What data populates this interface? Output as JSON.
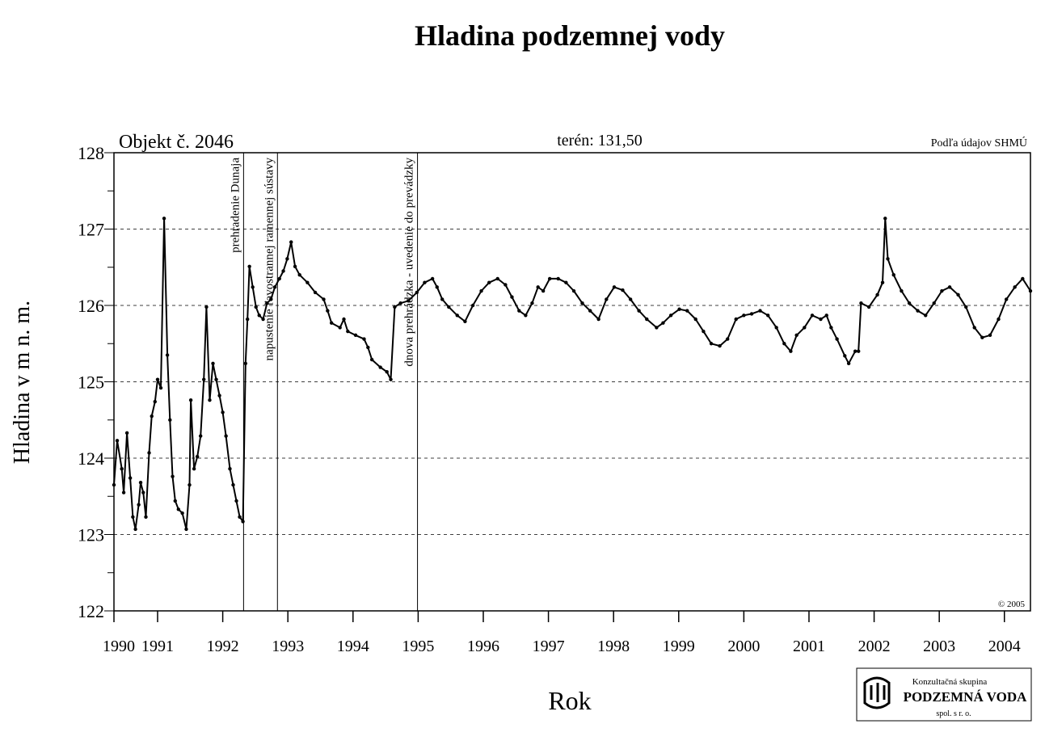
{
  "chart_data": {
    "type": "line",
    "title": "Hladina podzemnej vody",
    "object_label": "Objekt č. 2046",
    "terrain_label": "terén: 131,50",
    "source": "Podľa údajov SHMÚ",
    "copyright": "© 2005",
    "x_label": "Rok",
    "y_label": "Hladina v m n. m.",
    "logo": {
      "line1": "Konzultačná skupina",
      "line2": "PODZEMNÁ VODA",
      "line3": "spol. s r. o."
    },
    "xlim": [
      1990.33,
      2004.4
    ],
    "ylim": [
      122,
      128
    ],
    "xticks": [
      {
        "value": 1990.33,
        "label": "1990"
      },
      1991,
      1992,
      1993,
      1994,
      1995,
      1996,
      1997,
      1998,
      1999,
      2000,
      2001,
      2002,
      2003,
      2004
    ],
    "yticks": [
      122,
      123,
      124,
      125,
      126,
      127,
      128
    ],
    "yminor_ticks": [
      122.5,
      123.5,
      124.5,
      125.5,
      126.5,
      127.5
    ],
    "grid": true,
    "annotations": [
      {
        "x": 1992.32,
        "text": "prehradenie Dunaja"
      },
      {
        "x": 1992.84,
        "text": "napustenie ľavostrannej ramennej sústavy"
      },
      {
        "x": 1994.99,
        "text": "dnova prehrádzka - uvedenie do prevádzky"
      }
    ],
    "series": [
      {
        "name": "Objekt č. 2046",
        "color": "#000000",
        "x": [
          1990.33,
          1990.38,
          1990.45,
          1990.48,
          1990.53,
          1990.58,
          1990.62,
          1990.66,
          1990.71,
          1990.74,
          1990.78,
          1990.82,
          1990.87,
          1990.91,
          1990.96,
          1991.0,
          1991.05,
          1991.1,
          1991.15,
          1991.19,
          1991.23,
          1991.27,
          1991.32,
          1991.38,
          1991.44,
          1991.49,
          1991.51,
          1991.56,
          1991.61,
          1991.66,
          1991.71,
          1991.75,
          1991.8,
          1991.85,
          1991.9,
          1991.95,
          1992.0,
          1992.05,
          1992.11,
          1992.16,
          1992.21,
          1992.26,
          1992.31,
          1992.35,
          1992.38,
          1992.41,
          1992.46,
          1992.51,
          1992.56,
          1992.62,
          1992.68,
          1992.74,
          1992.8,
          1992.87,
          1992.93,
          1992.99,
          1993.05,
          1993.11,
          1993.18,
          1993.3,
          1993.42,
          1993.55,
          1993.61,
          1993.67,
          1993.8,
          1993.86,
          1993.92,
          1994.04,
          1994.17,
          1994.23,
          1994.29,
          1994.42,
          1994.52,
          1994.58,
          1994.64,
          1994.73,
          1994.85,
          1994.98,
          1995.1,
          1995.22,
          1995.29,
          1995.37,
          1995.47,
          1995.6,
          1995.72,
          1995.84,
          1995.97,
          1996.09,
          1996.22,
          1996.34,
          1996.44,
          1996.55,
          1996.65,
          1996.75,
          1996.84,
          1996.92,
          1997.02,
          1997.15,
          1997.27,
          1997.39,
          1997.52,
          1997.64,
          1997.77,
          1997.89,
          1998.01,
          1998.14,
          1998.26,
          1998.39,
          1998.51,
          1998.66,
          1998.76,
          1998.88,
          1999.01,
          1999.13,
          1999.26,
          1999.38,
          1999.5,
          1999.63,
          1999.75,
          1999.88,
          2000.0,
          2000.12,
          2000.25,
          2000.37,
          2000.5,
          2000.62,
          2000.72,
          2000.81,
          2000.93,
          2001.05,
          2001.18,
          2001.27,
          2001.34,
          2001.43,
          2001.55,
          2001.61,
          2001.71,
          2001.76,
          2001.8,
          2001.92,
          2002.05,
          2002.13,
          2002.17,
          2002.21,
          2002.3,
          2002.42,
          2002.54,
          2002.67,
          2002.79,
          2002.92,
          2003.04,
          2003.16,
          2003.29,
          2003.41,
          2003.54,
          2003.66,
          2003.78,
          2003.91,
          2004.03,
          2004.16,
          2004.28,
          2004.4
        ],
        "values": [
          123.65,
          124.23,
          123.86,
          123.55,
          124.33,
          123.74,
          123.23,
          123.07,
          123.39,
          123.68,
          123.55,
          123.23,
          124.07,
          124.55,
          124.74,
          125.03,
          124.92,
          127.14,
          125.35,
          124.5,
          123.76,
          123.44,
          123.33,
          123.28,
          123.07,
          123.65,
          124.76,
          123.86,
          124.02,
          124.29,
          125.03,
          125.98,
          124.76,
          125.24,
          125.03,
          124.82,
          124.6,
          124.29,
          123.86,
          123.65,
          123.44,
          123.23,
          123.17,
          125.24,
          125.82,
          126.51,
          126.24,
          125.98,
          125.87,
          125.82,
          126.03,
          126.08,
          126.24,
          126.35,
          126.45,
          126.61,
          126.83,
          126.51,
          126.4,
          126.3,
          126.17,
          126.08,
          125.93,
          125.77,
          125.71,
          125.82,
          125.66,
          125.61,
          125.56,
          125.45,
          125.29,
          125.19,
          125.13,
          125.03,
          125.98,
          126.03,
          126.06,
          126.17,
          126.3,
          126.35,
          126.24,
          126.08,
          125.98,
          125.87,
          125.79,
          126.0,
          126.19,
          126.3,
          126.35,
          126.27,
          126.11,
          125.93,
          125.87,
          126.03,
          126.24,
          126.19,
          126.35,
          126.35,
          126.3,
          126.19,
          126.03,
          125.93,
          125.82,
          126.08,
          126.24,
          126.2,
          126.08,
          125.93,
          125.82,
          125.71,
          125.77,
          125.87,
          125.95,
          125.93,
          125.82,
          125.66,
          125.5,
          125.47,
          125.56,
          125.82,
          125.87,
          125.89,
          125.93,
          125.87,
          125.71,
          125.5,
          125.4,
          125.61,
          125.71,
          125.87,
          125.82,
          125.87,
          125.71,
          125.56,
          125.34,
          125.24,
          125.4,
          125.4,
          126.03,
          125.98,
          126.14,
          126.3,
          127.14,
          126.61,
          126.4,
          126.19,
          126.03,
          125.93,
          125.87,
          126.03,
          126.19,
          126.24,
          126.14,
          125.98,
          125.71,
          125.58,
          125.61,
          125.82,
          126.08,
          126.24,
          126.35,
          126.19
        ]
      }
    ]
  }
}
